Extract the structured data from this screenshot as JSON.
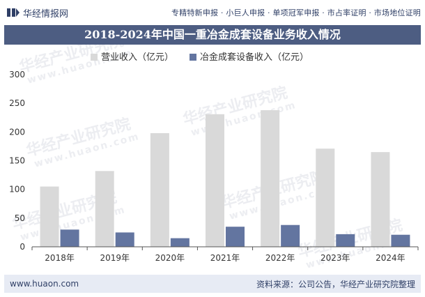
{
  "header": {
    "brand": "华经情报网",
    "services": "专精特新申报 · 小巨人申报 · 单项冠军申报 · 市占率证明 · 市场地位证明"
  },
  "title": "2018-2024年中国一重冶金成套设备业务收入情况",
  "footer": {
    "website": "www.huaon.com",
    "source": "资料来源：公司公告，华经产业研究院整理"
  },
  "watermark": {
    "text": "华经产业研究院",
    "url": "www.huaon.com"
  },
  "colors": {
    "title_bg": "#4d5d82",
    "series1": "#d9d9d9",
    "series2": "#6375a0",
    "footer_bg": "#e7ebf4"
  },
  "chart_data": {
    "type": "bar",
    "title": "2018-2024年中国一重冶金成套设备业务收入情况",
    "categories": [
      "2018年",
      "2019年",
      "2020年",
      "2021年",
      "2022年",
      "2023年",
      "2024年"
    ],
    "series": [
      {
        "name": "营业收入（亿元）",
        "color": "#d9d9d9",
        "values": [
          105,
          132,
          198,
          231,
          238,
          171,
          165
        ]
      },
      {
        "name": "冶金成套设备收入（亿元）",
        "color": "#6375a0",
        "values": [
          30,
          25,
          15,
          35,
          38,
          22,
          21
        ]
      }
    ],
    "yticks": [
      0,
      50,
      100,
      150,
      200,
      250,
      300
    ],
    "ylim": [
      0,
      300
    ],
    "xlabel": "",
    "ylabel": "",
    "legend": "top-center",
    "grid": false
  }
}
